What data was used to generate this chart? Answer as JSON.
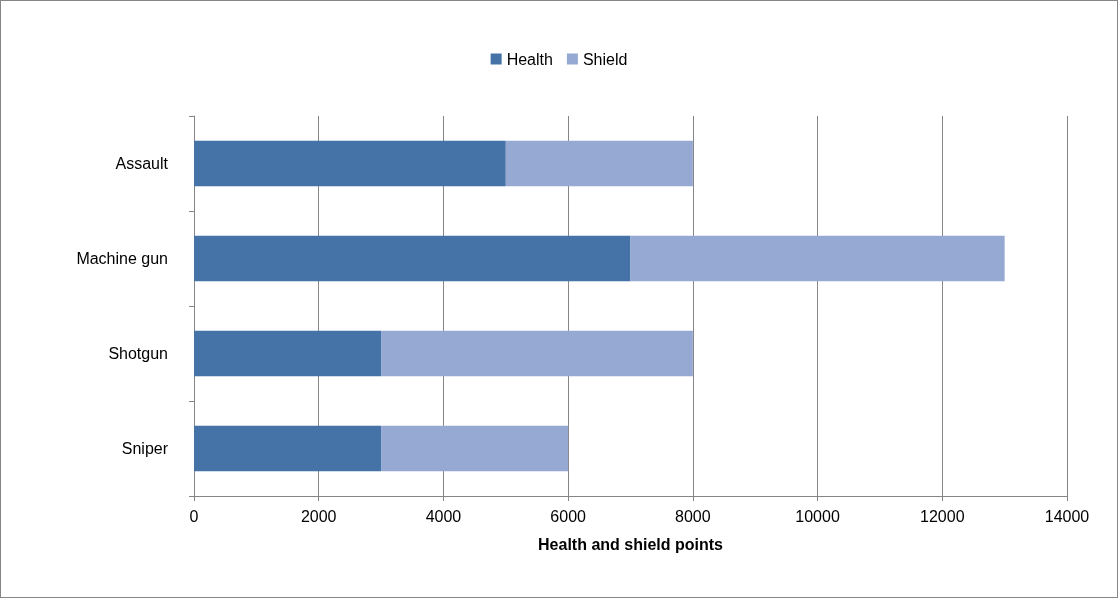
{
  "chart_data": {
    "type": "bar",
    "orientation": "horizontal",
    "stacked": true,
    "categories": [
      "Assault",
      "Machine gun",
      "Shotgun",
      "Sniper"
    ],
    "series": [
      {
        "name": "Health",
        "color": "#4572a7",
        "values": [
          5000,
          7000,
          3000,
          3000
        ]
      },
      {
        "name": "Shield",
        "color": "#95a9d3",
        "values": [
          3000,
          6000,
          5000,
          3000
        ]
      }
    ],
    "xlabel": "Health and shield points",
    "xlim": [
      0,
      14000
    ],
    "xticks": [
      0,
      2000,
      4000,
      6000,
      8000,
      10000,
      12000,
      14000
    ],
    "grid": "x",
    "legend": "top"
  }
}
